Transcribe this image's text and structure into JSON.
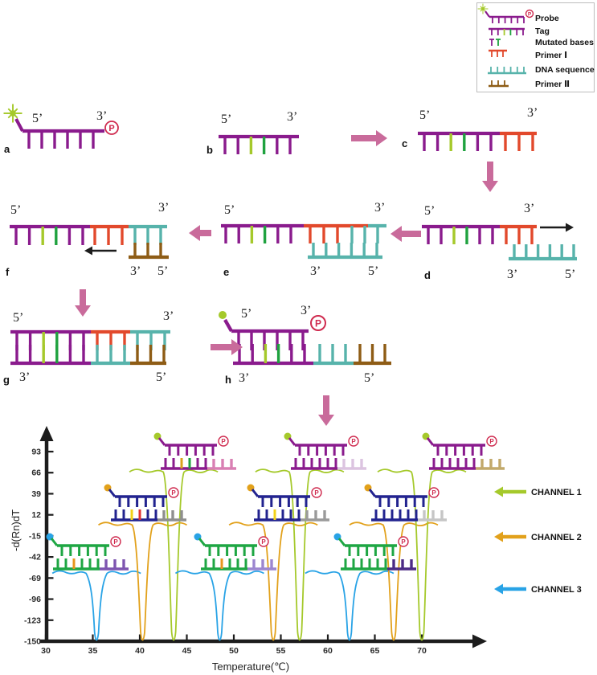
{
  "figure": {
    "five_prime": "5’",
    "three_prime": "3’",
    "phosphate": "P",
    "panel_labels": [
      "a",
      "b",
      "c",
      "d",
      "e",
      "f",
      "g",
      "h"
    ]
  },
  "legend": {
    "items": [
      {
        "id": "probe",
        "label": "Probe"
      },
      {
        "id": "tag",
        "label": "Tag"
      },
      {
        "id": "mutated-bases",
        "label": "Mutated bases"
      },
      {
        "id": "primer-1",
        "label": "Primer Ⅰ"
      },
      {
        "id": "dna-sequence",
        "label": "DNA sequence"
      },
      {
        "id": "primer-2",
        "label": "Primer Ⅱ"
      }
    ]
  },
  "colors": {
    "purple": "#8a1b8d",
    "yellow_green": "#a5c92b",
    "green": "#1fa23f",
    "red": "#e2492c",
    "teal": "#57b3ab",
    "brown": "#8e5c15",
    "arrow_pink": "#c96b9b",
    "crimson": "#cf2a4e",
    "black": "#1c1c1c",
    "navy": "#22238f",
    "channel_green": "#1ea643",
    "ch1": "#a5c92b",
    "ch2": "#e2a11b",
    "ch3": "#29a3e6"
  },
  "chart_data": {
    "type": "line",
    "title": "",
    "xlabel": "Temperature(℃)",
    "ylabel": "-d(Rn)dT",
    "x_ticks": [
      30,
      35,
      40,
      45,
      50,
      55,
      60,
      65,
      70
    ],
    "y_ticks": [
      93,
      66,
      39,
      12,
      -15,
      -42,
      -69,
      -96,
      -123,
      -150
    ],
    "xlim": [
      30,
      72
    ],
    "ylim": [
      -150,
      100
    ],
    "grid": false,
    "channels": [
      {
        "number": 1,
        "label": "CHANNEL 1",
        "color": "#a5c92b",
        "baseline": 68
      },
      {
        "number": 2,
        "label": "CHANNEL 2",
        "color": "#e2a11b",
        "baseline": 0
      },
      {
        "number": 3,
        "label": "CHANNEL 3",
        "color": "#29a3e6",
        "baseline": -62
      }
    ],
    "series": [
      {
        "channel": 3,
        "melt_temp": 35.4,
        "min_value": -150
      },
      {
        "channel": 2,
        "melt_temp": 40.3,
        "min_value": -150
      },
      {
        "channel": 1,
        "melt_temp": 43.6,
        "min_value": -150
      },
      {
        "channel": 3,
        "melt_temp": 48.5,
        "min_value": -150
      },
      {
        "channel": 2,
        "melt_temp": 54.2,
        "min_value": -150
      },
      {
        "channel": 1,
        "melt_temp": 57.0,
        "min_value": -150
      },
      {
        "channel": 3,
        "melt_temp": 62.3,
        "min_value": -150
      },
      {
        "channel": 2,
        "melt_temp": 67.0,
        "min_value": -150
      },
      {
        "channel": 1,
        "melt_temp": 70.0,
        "min_value": -150
      }
    ],
    "probe_schematics": [
      {
        "channel": 1,
        "melt_temp": 43.6,
        "strand_color": "#8a1b8d",
        "fluorophore_color": "#a5c92b",
        "tag_color": "#d97fb3",
        "mutations": [
          {
            "position": 3,
            "color": "#d9a21b"
          },
          {
            "position": 4,
            "color": "#1fa23f"
          }
        ]
      },
      {
        "channel": 1,
        "melt_temp": 57.0,
        "strand_color": "#8a1b8d",
        "fluorophore_color": "#a5c92b",
        "tag_color": "#dcc4e0",
        "mutations": []
      },
      {
        "channel": 1,
        "melt_temp": 70.0,
        "strand_color": "#8a1b8d",
        "fluorophore_color": "#a5c92b",
        "tag_color": "#c2a96a",
        "mutations": []
      },
      {
        "channel": 2,
        "melt_temp": 40.3,
        "strand_color": "#22238f",
        "fluorophore_color": "#e2a11b",
        "tag_color": "#8f8f8f",
        "mutations": [
          {
            "position": 3,
            "color": "#f2d117"
          },
          {
            "position": 4,
            "color": "#e03030"
          }
        ]
      },
      {
        "channel": 2,
        "melt_temp": 54.2,
        "strand_color": "#22238f",
        "fluorophore_color": "#e2a11b",
        "tag_color": "#9a9a9a",
        "mutations": [
          {
            "position": 3,
            "color": "#f2d117"
          }
        ]
      },
      {
        "channel": 2,
        "melt_temp": 67.0,
        "strand_color": "#22238f",
        "fluorophore_color": "#e2a11b",
        "tag_color": "#c6c6c6",
        "mutations": []
      },
      {
        "channel": 3,
        "melt_temp": 35.4,
        "strand_color": "#1ea643",
        "fluorophore_color": "#29a3e6",
        "tag_color": "#7e55b0",
        "mutations": [
          {
            "position": 3,
            "color": "#e8961e"
          }
        ]
      },
      {
        "channel": 3,
        "melt_temp": 48.5,
        "strand_color": "#1ea643",
        "fluorophore_color": "#29a3e6",
        "tag_color": "#9c86d0",
        "mutations": [
          {
            "position": 3,
            "color": "#e8961e"
          }
        ]
      },
      {
        "channel": 3,
        "melt_temp": 62.3,
        "strand_color": "#1ea643",
        "fluorophore_color": "#29a3e6",
        "tag_color": "#4b2a86",
        "mutations": []
      }
    ]
  }
}
